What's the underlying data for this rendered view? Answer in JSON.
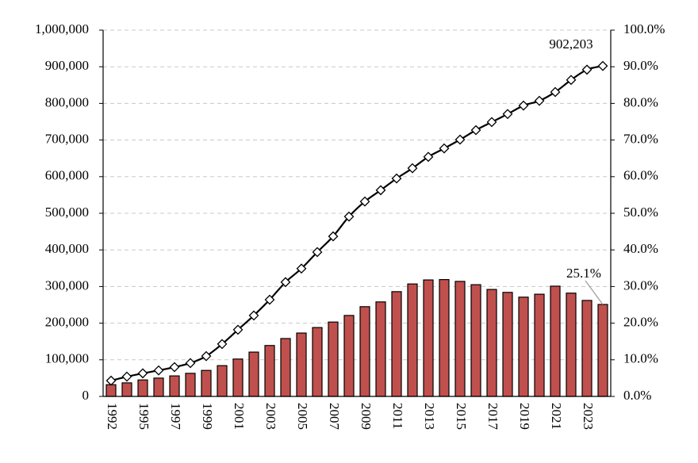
{
  "chart_data": {
    "type": "combo",
    "categories": [
      "1992",
      null,
      "1995",
      null,
      "1997",
      null,
      "1999",
      null,
      "2001",
      null,
      "2003",
      null,
      "2005",
      null,
      "2007",
      null,
      "2009",
      null,
      "2011",
      null,
      "2013",
      null,
      "2015",
      null,
      "2017",
      null,
      "2019",
      null,
      "2021",
      null,
      "2023",
      null
    ],
    "series": [
      {
        "type": "bar",
        "axis": "y2",
        "color": "#c0504d",
        "values": [
          3.2,
          3.7,
          4.5,
          5.0,
          5.6,
          6.3,
          7.1,
          8.4,
          10.2,
          12.1,
          13.9,
          15.8,
          17.3,
          18.8,
          20.3,
          22.1,
          24.5,
          25.8,
          28.6,
          30.7,
          31.8,
          31.9,
          31.4,
          30.5,
          29.2,
          28.4,
          27.1,
          27.9,
          30.1,
          28.2,
          26.2,
          25.1
        ],
        "value_labels": [
          null,
          null,
          null,
          null,
          null,
          null,
          null,
          null,
          null,
          null,
          null,
          null,
          null,
          null,
          null,
          null,
          null,
          null,
          null,
          null,
          null,
          null,
          null,
          null,
          null,
          null,
          null,
          null,
          null,
          null,
          null,
          "25.1%"
        ]
      },
      {
        "type": "line",
        "axis": "y",
        "color": "#000000",
        "values": [
          43000,
          54000,
          63000,
          71000,
          80000,
          91000,
          110000,
          143000,
          182000,
          221000,
          264000,
          312000,
          349000,
          394000,
          437000,
          491000,
          532000,
          563000,
          595000,
          623000,
          654000,
          677000,
          701000,
          727000,
          749000,
          771000,
          794000,
          807000,
          831000,
          864000,
          892000,
          902203
        ],
        "value_labels": [
          null,
          null,
          null,
          null,
          null,
          null,
          null,
          null,
          null,
          null,
          null,
          null,
          null,
          null,
          null,
          null,
          null,
          null,
          null,
          null,
          null,
          null,
          null,
          null,
          null,
          null,
          null,
          null,
          null,
          null,
          null,
          "902,203"
        ]
      }
    ],
    "ylim": [
      0,
      1000000
    ],
    "yticks": [
      0,
      {
        "value": 100000,
        "label": "100,000"
      },
      {
        "value": 200000,
        "label": "200,000"
      },
      {
        "value": 300000,
        "label": "300,000"
      },
      {
        "value": 400000,
        "label": "400,000"
      },
      {
        "value": 500000,
        "label": "500,000"
      },
      {
        "value": 600000,
        "label": "600,000"
      },
      {
        "value": 700000,
        "label": "700,000"
      },
      {
        "value": 800000,
        "label": "800,000"
      },
      {
        "value": 900000,
        "label": "900,000"
      },
      {
        "value": 1000000,
        "label": "1,000,000"
      }
    ],
    "y2lim": [
      0,
      100
    ],
    "y2ticks": [
      {
        "value": 0,
        "label": "0.0%"
      },
      {
        "value": 10,
        "label": "10.0%"
      },
      {
        "value": 20,
        "label": "20.0%"
      },
      {
        "value": 30,
        "label": "30.0%"
      },
      {
        "value": 40,
        "label": "40.0%"
      },
      {
        "value": 50,
        "label": "50.0%"
      },
      {
        "value": 60,
        "label": "60.0%"
      },
      {
        "value": 70,
        "label": "70.0%"
      },
      {
        "value": 80,
        "label": "80.0%"
      },
      {
        "value": 90,
        "label": "90.0%"
      },
      {
        "value": 100,
        "label": "100.0%"
      }
    ],
    "grid": true
  }
}
